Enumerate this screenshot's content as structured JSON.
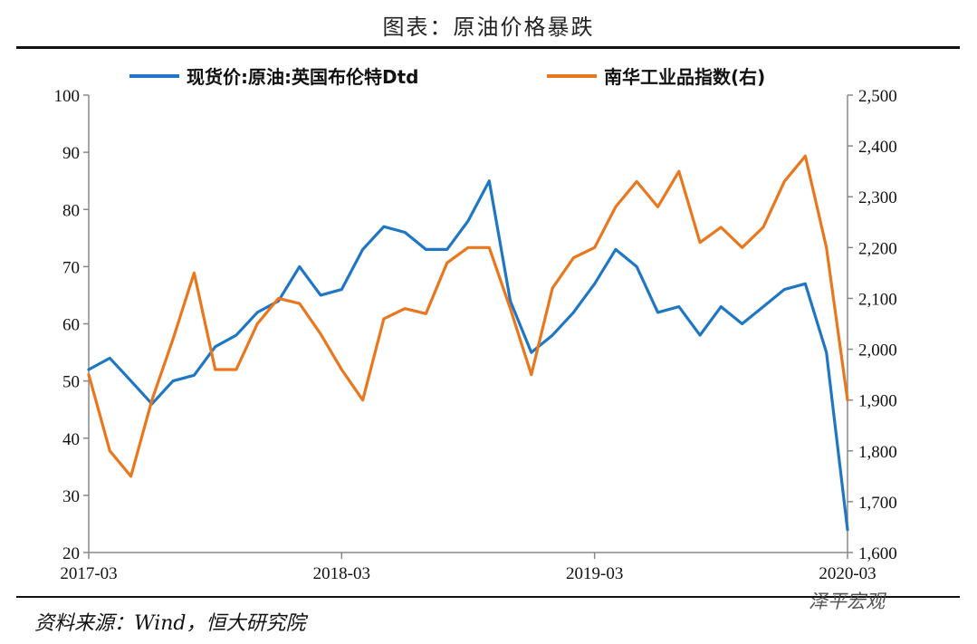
{
  "header": {
    "title": "图表：原油价格暴跌"
  },
  "footer": {
    "source": "资料来源：Wind，恒大研究院",
    "watermark": "泽平宏观"
  },
  "chart_data": {
    "type": "line",
    "title": "图表：原油价格暴跌",
    "xlabel": "",
    "ylabel": "",
    "legend_position": "top",
    "grid": false,
    "x_ticks": [
      "2017-03",
      "2018-03",
      "2019-03",
      "2020-03"
    ],
    "y_left": {
      "range": [
        20,
        100
      ],
      "ticks": [
        "20",
        "30",
        "40",
        "50",
        "60",
        "70",
        "80",
        "90",
        "100"
      ]
    },
    "y_right": {
      "range": [
        1600,
        2500
      ],
      "ticks": [
        "1,600",
        "1,700",
        "1,800",
        "1,900",
        "2,000",
        "2,100",
        "2,200",
        "2,300",
        "2,400",
        "2,500"
      ]
    },
    "series": [
      {
        "name": "现货价:原油:英国布伦特Dtd",
        "axis": "left",
        "color": "#1f77c4",
        "x": [
          "2017-03",
          "2017-04",
          "2017-05",
          "2017-06",
          "2017-07",
          "2017-08",
          "2017-09",
          "2017-10",
          "2017-11",
          "2017-12",
          "2018-01",
          "2018-02",
          "2018-03",
          "2018-04",
          "2018-05",
          "2018-06",
          "2018-07",
          "2018-08",
          "2018-09",
          "2018-10",
          "2018-11",
          "2018-12",
          "2019-01",
          "2019-02",
          "2019-03",
          "2019-04",
          "2019-05",
          "2019-06",
          "2019-07",
          "2019-08",
          "2019-09",
          "2019-10",
          "2019-11",
          "2019-12",
          "2020-01",
          "2020-02",
          "2020-03"
        ],
        "values": [
          52,
          54,
          50,
          46,
          50,
          51,
          56,
          58,
          62,
          64,
          70,
          65,
          66,
          73,
          77,
          76,
          73,
          73,
          78,
          85,
          64,
          55,
          58,
          62,
          67,
          73,
          70,
          62,
          63,
          58,
          63,
          60,
          63,
          66,
          67,
          55,
          24
        ]
      },
      {
        "name": "南华工业品指数(右)",
        "axis": "right",
        "color": "#e8771e",
        "x": [
          "2017-03",
          "2017-04",
          "2017-05",
          "2017-06",
          "2017-07",
          "2017-08",
          "2017-09",
          "2017-10",
          "2017-11",
          "2017-12",
          "2018-01",
          "2018-02",
          "2018-03",
          "2018-04",
          "2018-05",
          "2018-06",
          "2018-07",
          "2018-08",
          "2018-09",
          "2018-10",
          "2018-11",
          "2018-12",
          "2019-01",
          "2019-02",
          "2019-03",
          "2019-04",
          "2019-05",
          "2019-06",
          "2019-07",
          "2019-08",
          "2019-09",
          "2019-10",
          "2019-11",
          "2019-12",
          "2020-01",
          "2020-02",
          "2020-03"
        ],
        "values": [
          1950,
          1800,
          1750,
          1900,
          2020,
          2150,
          1960,
          1960,
          2050,
          2100,
          2090,
          2030,
          1960,
          1900,
          2060,
          2080,
          2070,
          2170,
          2200,
          2200,
          2080,
          1950,
          2120,
          2180,
          2200,
          2280,
          2330,
          2280,
          2350,
          2210,
          2240,
          2200,
          2240,
          2330,
          2380,
          2200,
          1900
        ]
      }
    ]
  }
}
